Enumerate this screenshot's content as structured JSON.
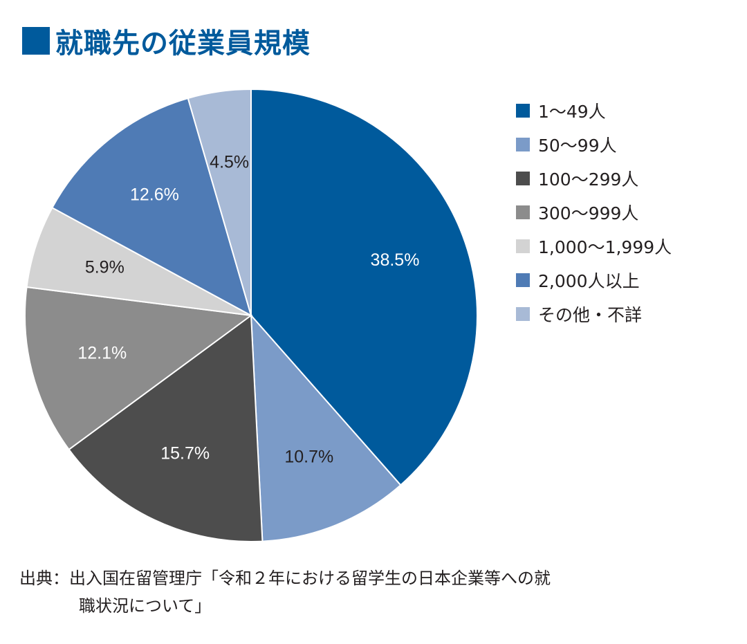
{
  "chart_data": {
    "type": "pie",
    "title": "就職先の従業員規模",
    "start_angle": "12 o'clock, clockwise",
    "slices": [
      {
        "label": "1〜49人",
        "value": 38.5,
        "value_label": "38.5%",
        "color": "#005a9c",
        "label_color": "#ffffff"
      },
      {
        "label": "50〜99人",
        "value": 10.7,
        "value_label": "10.7%",
        "color": "#7b9bc8",
        "label_color": "#231f20"
      },
      {
        "label": "100〜299人",
        "value": 15.7,
        "value_label": "15.7%",
        "color": "#4d4d4d",
        "label_color": "#ffffff"
      },
      {
        "label": "300〜999人",
        "value": 12.1,
        "value_label": "12.1%",
        "color": "#8c8c8c",
        "label_color": "#ffffff"
      },
      {
        "label": "1,000〜1,999人",
        "value": 5.9,
        "value_label": "5.9%",
        "color": "#d3d3d3",
        "label_color": "#231f20"
      },
      {
        "label": "2,000人以上",
        "value": 12.6,
        "value_label": "12.6%",
        "color": "#4f7bb5",
        "label_color": "#ffffff"
      },
      {
        "label": "その他・不詳",
        "value": 4.5,
        "value_label": "4.5%",
        "color": "#a8bad6",
        "label_color": "#231f20"
      }
    ],
    "legend_position": "right"
  },
  "source": {
    "line1": "出典：出入国在留管理庁「令和２年における留学生の日本企業等への就",
    "line2": "職状況について」"
  }
}
